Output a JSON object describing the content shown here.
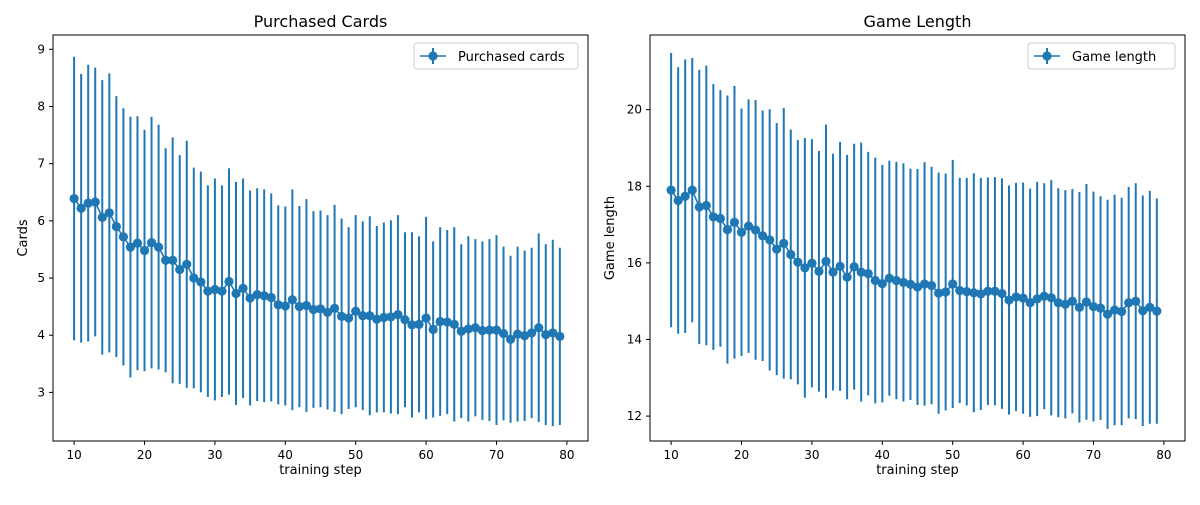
{
  "figure": {
    "background": "#ffffff",
    "series_color": "#1f77b4"
  },
  "chart_data": [
    {
      "type": "errorbar",
      "title": "Purchased Cards",
      "xlabel": "training step",
      "ylabel": "Cards",
      "xlim": [
        7,
        83
      ],
      "ylim": [
        2.15,
        9.25
      ],
      "xticks": [
        10,
        20,
        30,
        40,
        50,
        60,
        70,
        80
      ],
      "xtick_labels": [
        "10",
        "20",
        "30",
        "40",
        "50",
        "60",
        "70",
        "80"
      ],
      "yticks": [
        3,
        4,
        5,
        6,
        7,
        8,
        9
      ],
      "ytick_labels": [
        "3",
        "4",
        "5",
        "6",
        "7",
        "8",
        "9"
      ],
      "legend": {
        "label": "Purchased cards",
        "position": "top-right"
      },
      "series": [
        {
          "name": "Purchased cards",
          "x": [
            10,
            11,
            12,
            13,
            14,
            15,
            16,
            17,
            18,
            19,
            20,
            21,
            22,
            23,
            24,
            25,
            26,
            27,
            28,
            29,
            30,
            31,
            32,
            33,
            34,
            35,
            36,
            37,
            38,
            39,
            40,
            41,
            42,
            43,
            44,
            45,
            46,
            47,
            48,
            49,
            50,
            51,
            52,
            53,
            54,
            55,
            56,
            57,
            58,
            59,
            60,
            61,
            62,
            63,
            64,
            65,
            66,
            67,
            68,
            69,
            70,
            71,
            72,
            73,
            74,
            75,
            76,
            77,
            78,
            79
          ],
          "y": [
            6.39,
            6.22,
            6.31,
            6.33,
            6.06,
            6.14,
            5.9,
            5.72,
            5.54,
            5.61,
            5.48,
            5.62,
            5.54,
            5.31,
            5.31,
            5.15,
            5.24,
            5.0,
            4.93,
            4.77,
            4.8,
            4.77,
            4.94,
            4.73,
            4.82,
            4.65,
            4.71,
            4.69,
            4.66,
            4.53,
            4.51,
            4.62,
            4.5,
            4.52,
            4.45,
            4.46,
            4.4,
            4.47,
            4.33,
            4.3,
            4.42,
            4.34,
            4.34,
            4.28,
            4.31,
            4.32,
            4.36,
            4.27,
            4.18,
            4.19,
            4.3,
            4.1,
            4.24,
            4.23,
            4.19,
            4.07,
            4.11,
            4.13,
            4.08,
            4.09,
            4.09,
            4.03,
            3.93,
            4.02,
            3.99,
            4.04,
            4.13,
            4.01,
            4.04,
            3.98
          ],
          "yerr": [
            2.48,
            2.35,
            2.42,
            2.35,
            2.4,
            2.44,
            2.28,
            2.25,
            2.28,
            2.22,
            2.11,
            2.2,
            2.14,
            1.96,
            2.15,
            2.0,
            2.16,
            1.93,
            1.93,
            1.85,
            1.94,
            1.85,
            1.98,
            1.95,
            1.92,
            1.88,
            1.86,
            1.86,
            1.82,
            1.74,
            1.74,
            1.93,
            1.76,
            1.86,
            1.72,
            1.72,
            1.7,
            1.81,
            1.71,
            1.59,
            1.68,
            1.65,
            1.74,
            1.63,
            1.66,
            1.69,
            1.74,
            1.53,
            1.62,
            1.54,
            1.77,
            1.54,
            1.65,
            1.61,
            1.7,
            1.52,
            1.62,
            1.55,
            1.56,
            1.59,
            1.66,
            1.52,
            1.46,
            1.53,
            1.49,
            1.49,
            1.65,
            1.58,
            1.63,
            1.55
          ]
        }
      ]
    },
    {
      "type": "errorbar",
      "title": "Game Length",
      "xlabel": "training step",
      "ylabel": "Game length",
      "xlim": [
        7,
        83
      ],
      "ylim": [
        11.35,
        21.95
      ],
      "xticks": [
        10,
        20,
        30,
        40,
        50,
        60,
        70,
        80
      ],
      "xtick_labels": [
        "10",
        "20",
        "30",
        "40",
        "50",
        "60",
        "70",
        "80"
      ],
      "yticks": [
        12,
        14,
        16,
        18,
        20
      ],
      "ytick_labels": [
        "12",
        "14",
        "16",
        "18",
        "20"
      ],
      "legend": {
        "label": "Game length",
        "position": "top-right"
      },
      "series": [
        {
          "name": "Game length",
          "x": [
            10,
            11,
            12,
            13,
            14,
            15,
            16,
            17,
            18,
            19,
            20,
            21,
            22,
            23,
            24,
            25,
            26,
            27,
            28,
            29,
            30,
            31,
            32,
            33,
            34,
            35,
            36,
            37,
            38,
            39,
            40,
            41,
            42,
            43,
            44,
            45,
            46,
            47,
            48,
            49,
            50,
            51,
            52,
            53,
            54,
            55,
            56,
            57,
            58,
            59,
            60,
            61,
            62,
            63,
            64,
            65,
            66,
            67,
            68,
            69,
            70,
            71,
            72,
            73,
            74,
            75,
            76,
            77,
            78,
            79
          ],
          "y": [
            17.9,
            17.63,
            17.74,
            17.9,
            17.46,
            17.5,
            17.2,
            17.16,
            16.87,
            17.06,
            16.8,
            16.96,
            16.86,
            16.71,
            16.6,
            16.36,
            16.51,
            16.22,
            16.02,
            15.87,
            15.99,
            15.78,
            16.04,
            15.76,
            15.91,
            15.63,
            15.9,
            15.76,
            15.72,
            15.54,
            15.46,
            15.6,
            15.54,
            15.49,
            15.44,
            15.37,
            15.45,
            15.41,
            15.21,
            15.24,
            15.45,
            15.28,
            15.25,
            15.22,
            15.19,
            15.26,
            15.26,
            15.2,
            15.03,
            15.11,
            15.08,
            14.96,
            15.06,
            15.13,
            15.09,
            14.96,
            14.92,
            15.0,
            14.84,
            14.98,
            14.86,
            14.82,
            14.66,
            14.77,
            14.73,
            14.96,
            15.0,
            14.75,
            14.84,
            14.74
          ],
          "yerr": [
            3.58,
            3.48,
            3.57,
            3.45,
            3.58,
            3.65,
            3.47,
            3.35,
            3.5,
            3.56,
            3.23,
            3.31,
            3.39,
            3.27,
            3.41,
            3.29,
            3.53,
            3.26,
            3.19,
            3.39,
            3.24,
            3.14,
            3.57,
            3.09,
            3.25,
            3.19,
            3.21,
            3.38,
            3.18,
            3.21,
            3.1,
            3.07,
            3.1,
            3.11,
            3.02,
            3.08,
            3.18,
            3.1,
            3.15,
            3.09,
            3.24,
            2.94,
            2.97,
            3.12,
            3.03,
            2.97,
            2.98,
            3.01,
            2.99,
            2.98,
            3.02,
            2.98,
            3.06,
            2.95,
            3.07,
            2.99,
            2.98,
            2.93,
            3.01,
            3.08,
            3.0,
            2.92,
            2.99,
            3.01,
            2.97,
            3.02,
            3.08,
            3.01,
            3.04,
            2.94
          ]
        }
      ]
    }
  ]
}
